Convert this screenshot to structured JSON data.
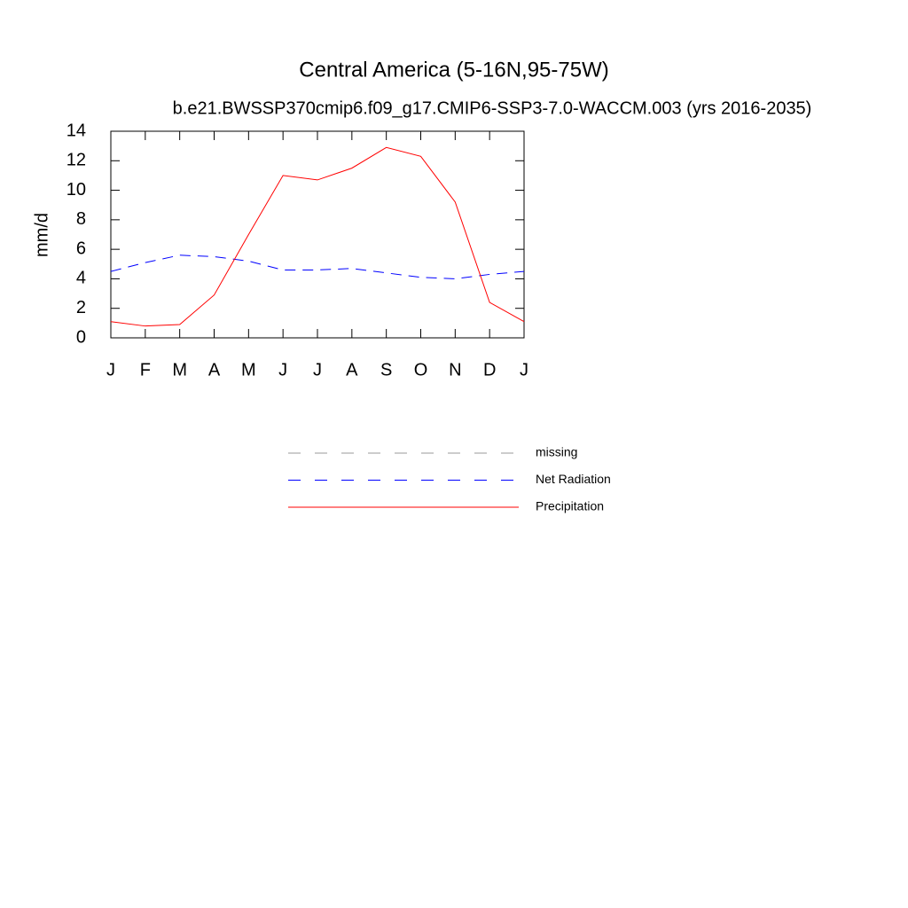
{
  "chart_data": {
    "type": "line",
    "title": "Central America (5-16N,95-75W)",
    "subtitle": "b.e21.BWSSP370cmip6.f09_g17.CMIP6-SSP3-7.0-WACCM.003 (yrs 2016-2035)",
    "y_label": "mm/d",
    "categories": [
      "J",
      "F",
      "M",
      "A",
      "M",
      "J",
      "J",
      "A",
      "S",
      "O",
      "N",
      "D",
      "J"
    ],
    "series": [
      {
        "name": "missing",
        "color": "#999999",
        "line_style": "dashed",
        "values": [
          null,
          null,
          null,
          null,
          null,
          null,
          null,
          null,
          null,
          null,
          null,
          null,
          null
        ]
      },
      {
        "name": "Net Radiation",
        "color": "#0000ff",
        "line_style": "dashed",
        "values": [
          4.5,
          5.1,
          5.6,
          5.5,
          5.2,
          4.6,
          4.6,
          4.7,
          4.4,
          4.1,
          4.0,
          4.3,
          4.5
        ]
      },
      {
        "name": "Precipitation",
        "color": "#ff0000",
        "line_style": "solid",
        "values": [
          1.1,
          0.8,
          0.9,
          2.9,
          7.0,
          11.0,
          10.7,
          11.5,
          12.9,
          12.3,
          9.2,
          2.4,
          1.1
        ]
      }
    ],
    "ylim": [
      0,
      14
    ],
    "yticks": [
      0,
      2,
      4,
      6,
      8,
      10,
      12,
      14
    ]
  }
}
